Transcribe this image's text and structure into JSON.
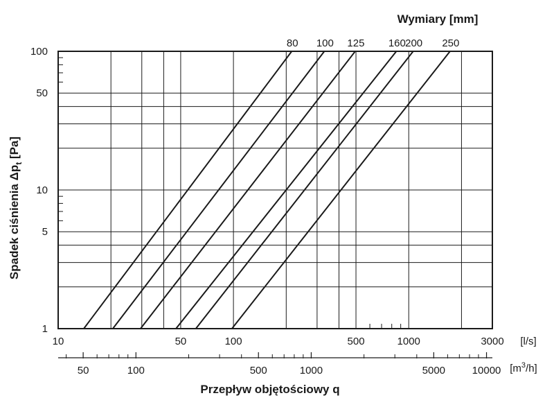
{
  "chart_data": {
    "type": "line",
    "title": "Wymiary [mm]",
    "xlabel": "Przepływ objętościowy q",
    "ylabel_main": "Spadek ciśnienia Δp",
    "ylabel_sub": "t",
    "ylabel_unit": "[Pa]",
    "x_unit": "[l/s]",
    "x2_unit_prefix": "[m",
    "x2_unit_sup": "3",
    "x2_unit_suffix": "/h]",
    "x_scale": "log",
    "y_scale": "log",
    "xlim": [
      10,
      3000
    ],
    "ylim": [
      1,
      100
    ],
    "grid": true,
    "x_ticks": [
      {
        "value": 10,
        "label": "10"
      },
      {
        "value": 50,
        "label": "50"
      },
      {
        "value": 100,
        "label": "100"
      },
      {
        "value": 500,
        "label": "500"
      },
      {
        "value": 1000,
        "label": "1000"
      },
      {
        "value": 3000,
        "label": "3000"
      }
    ],
    "y_ticks": [
      {
        "value": 1,
        "label": "1"
      },
      {
        "value": 5,
        "label": "5"
      },
      {
        "value": 10,
        "label": "10"
      },
      {
        "value": 50,
        "label": "50"
      },
      {
        "value": 100,
        "label": "100"
      }
    ],
    "x2_ticks": [
      {
        "value": 50,
        "label": "50"
      },
      {
        "value": 100,
        "label": "100"
      },
      {
        "value": 500,
        "label": "500"
      },
      {
        "value": 1000,
        "label": "1000"
      },
      {
        "value": 5000,
        "label": "5000"
      },
      {
        "value": 10000,
        "label": "10000"
      }
    ],
    "x_gridlines": [
      20,
      30,
      40,
      50,
      100,
      200,
      300,
      400,
      500,
      1000,
      2000
    ],
    "y_gridlines": [
      2,
      3,
      4,
      5,
      10,
      20,
      30,
      40,
      50
    ],
    "series": [
      {
        "name": "80",
        "x": [
          14,
          215
        ],
        "y": [
          1,
          100
        ]
      },
      {
        "name": "100",
        "x": [
          20.5,
          330
        ],
        "y": [
          1,
          100
        ]
      },
      {
        "name": "125",
        "x": [
          29.5,
          495
        ],
        "y": [
          1,
          100
        ]
      },
      {
        "name": "160",
        "x": [
          47,
          850
        ],
        "y": [
          1,
          100
        ]
      },
      {
        "name": "200",
        "x": [
          61,
          1060
        ],
        "y": [
          1,
          100
        ]
      },
      {
        "name": "250",
        "x": [
          98,
          1720
        ],
        "y": [
          1,
          100
        ]
      }
    ]
  }
}
